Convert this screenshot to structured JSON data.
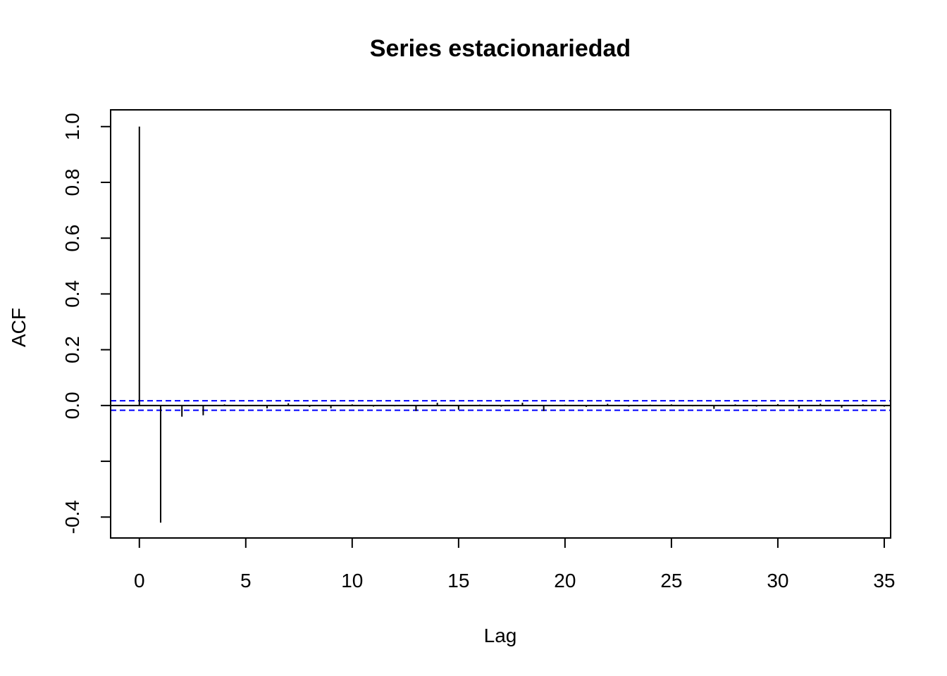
{
  "chart_data": {
    "type": "bar",
    "title": "Series  estacionariedad",
    "xlabel": "Lag",
    "ylabel": "ACF",
    "xlim": [
      -1.35,
      35.3
    ],
    "ylim": [
      -0.475,
      1.06
    ],
    "x_ticks": [
      0,
      5,
      10,
      15,
      20,
      25,
      30,
      35
    ],
    "x_tick_labels": [
      "0",
      "5",
      "10",
      "15",
      "20",
      "25",
      "30",
      "35"
    ],
    "y_ticks": [
      -0.4,
      -0.2,
      0.0,
      0.2,
      0.4,
      0.6,
      0.8,
      1.0
    ],
    "y_tick_labels": [
      "-0.4",
      "",
      "0.0",
      "0.2",
      "0.4",
      "0.6",
      "0.8",
      "1.0"
    ],
    "ci_upper": 0.017,
    "ci_lower": -0.017,
    "ci_color": "#0000ff",
    "bar_color": "#000000",
    "lags": [
      0,
      1,
      2,
      3,
      4,
      5,
      6,
      7,
      8,
      9,
      10,
      11,
      12,
      13,
      14,
      15,
      16,
      17,
      18,
      19,
      20,
      21,
      22,
      23,
      24,
      25,
      26,
      27,
      28,
      29,
      30,
      31,
      32,
      33,
      34,
      35
    ],
    "acf": [
      1.0,
      -0.42,
      -0.04,
      -0.035,
      0.004,
      -0.003,
      -0.01,
      0.008,
      -0.005,
      -0.01,
      0.004,
      -0.004,
      -0.003,
      -0.02,
      0.01,
      -0.015,
      0.003,
      -0.004,
      0.01,
      -0.02,
      0.003,
      -0.005,
      0.006,
      -0.004,
      0.003,
      0.004,
      -0.003,
      -0.012,
      0.004,
      -0.004,
      0.005,
      -0.01,
      0.006,
      -0.008,
      0.004,
      -0.004
    ],
    "grid": false,
    "legend": "none"
  }
}
